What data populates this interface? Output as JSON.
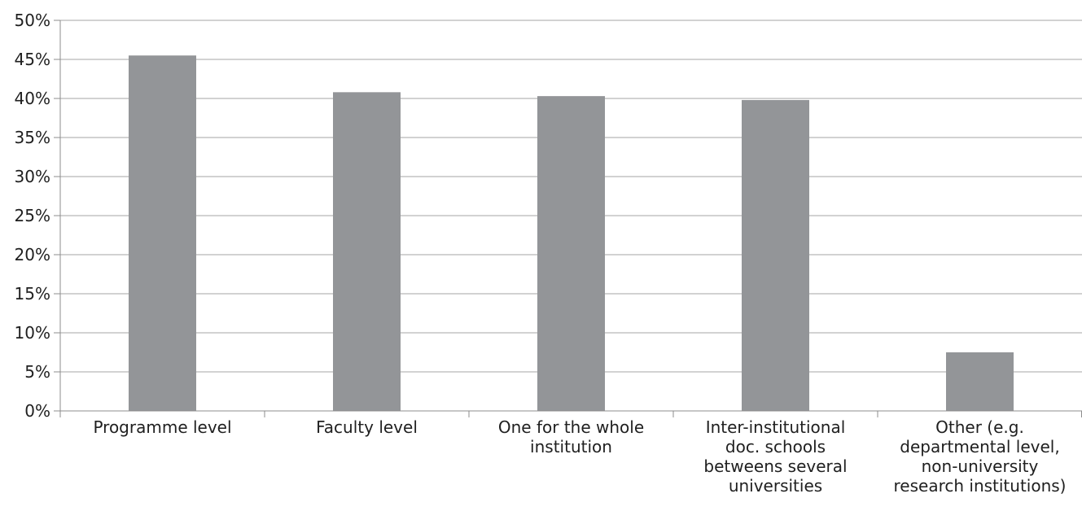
{
  "chart_data": {
    "type": "bar",
    "title": "",
    "xlabel": "",
    "ylabel": "",
    "categories": [
      "Programme level",
      "Faculty level",
      "One for the whole institution",
      "Inter-institutional doc. schools betweens several universities",
      "Other (e.g. departmental level, non-university research institutions)"
    ],
    "category_lines": [
      [
        "Programme level"
      ],
      [
        "Faculty level"
      ],
      [
        "One for the whole",
        "institution"
      ],
      [
        "Inter-institutional",
        "doc. schools",
        "betweens several",
        "universities"
      ],
      [
        "Other (e.g.",
        "departmental level,",
        "non-university",
        "research institutions)"
      ]
    ],
    "values": [
      45.5,
      40.8,
      40.3,
      39.8,
      7.5
    ],
    "ylim": [
      0,
      50
    ],
    "y_ticks": [
      0,
      5,
      10,
      15,
      20,
      25,
      30,
      35,
      40,
      45,
      50
    ],
    "y_tick_suffix": "%",
    "grid": true,
    "legend": "none",
    "colors": {
      "bar": "#939598",
      "grid": "#a6a6a6",
      "axis": "#8c8c8c"
    }
  }
}
